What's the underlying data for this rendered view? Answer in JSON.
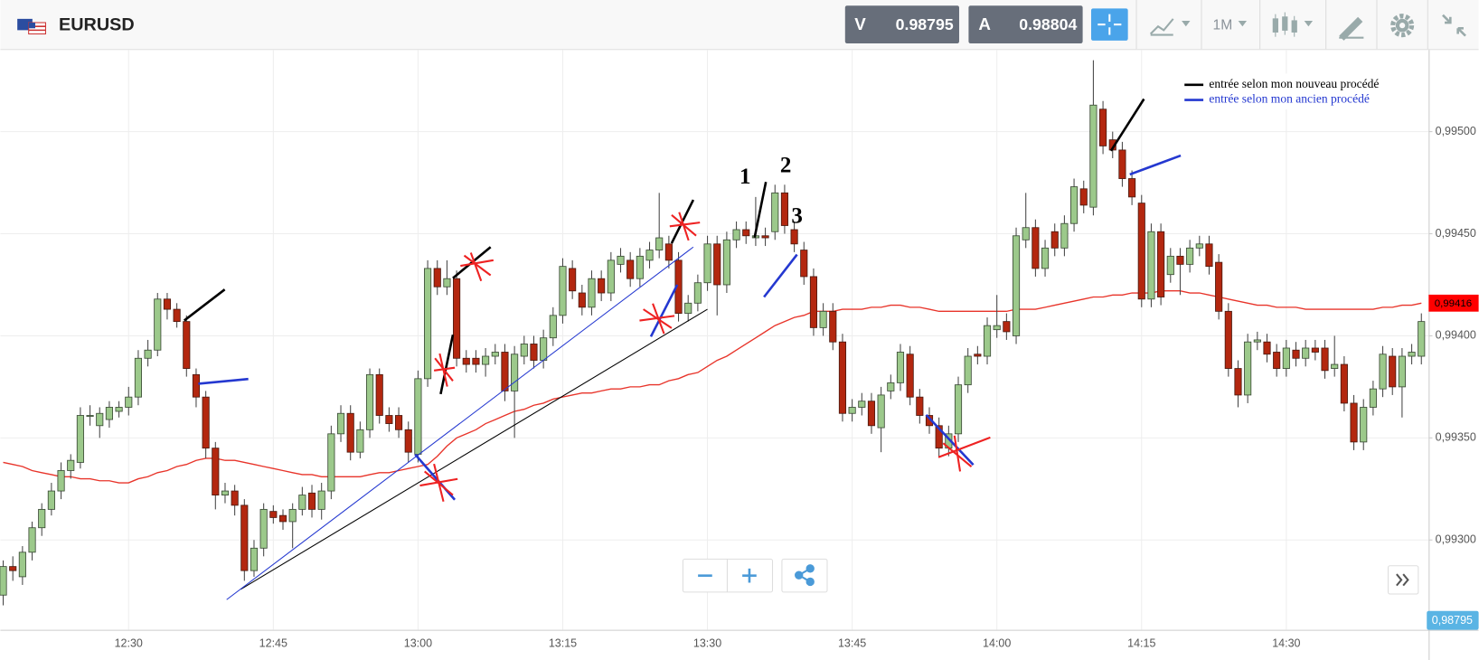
{
  "header": {
    "symbol": "EURUSD",
    "bid_letter": "V",
    "bid": "0.98795",
    "ask_letter": "A",
    "ask": "0.98804",
    "timeframe": "1M"
  },
  "chart_data": {
    "type": "candlestick",
    "categories": [
      null,
      null,
      null,
      null,
      null,
      null,
      null,
      null,
      null,
      null,
      null,
      null,
      null,
      "12:30",
      null,
      null,
      null,
      null,
      null,
      null,
      null,
      null,
      null,
      null,
      null,
      null,
      null,
      null,
      "12:45",
      null,
      null,
      null,
      null,
      null,
      null,
      null,
      null,
      null,
      null,
      null,
      null,
      null,
      null,
      "13:00",
      null,
      null,
      null,
      null,
      null,
      null,
      null,
      null,
      null,
      null,
      null,
      null,
      null,
      null,
      "13:15",
      null,
      null,
      null,
      null,
      null,
      null,
      null,
      null,
      null,
      null,
      null,
      null,
      null,
      null,
      "13:30",
      null,
      null,
      null,
      null,
      null,
      null,
      null,
      null,
      null,
      null,
      null,
      null,
      null,
      null,
      "13:45",
      null,
      null,
      null,
      null,
      null,
      null,
      null,
      null,
      null,
      null,
      null,
      null,
      null,
      null,
      "14:00",
      null,
      null,
      null,
      null,
      null,
      null,
      null,
      null,
      null,
      null,
      null,
      null,
      null,
      null,
      "14:15",
      null,
      null,
      null,
      null,
      null,
      null,
      null,
      null,
      null,
      null,
      null,
      null,
      null,
      null,
      "14:30",
      null,
      null,
      null,
      null,
      null,
      null,
      null,
      null,
      null,
      null,
      null,
      null,
      null,
      null
    ],
    "open": [
      0.99273,
      0.99287,
      0.99282,
      0.99294,
      0.99306,
      0.99315,
      0.99324,
      0.99334,
      0.99338,
      0.99361,
      0.99356,
      0.99359,
      0.99363,
      0.99365,
      0.9937,
      0.99389,
      0.99393,
      0.99418,
      0.99413,
      0.99407,
      0.99381,
      0.9937,
      0.99345,
      0.99322,
      0.99324,
      0.99317,
      0.99285,
      0.99296,
      0.99314,
      0.99312,
      0.99309,
      0.99315,
      0.99323,
      0.99315,
      0.99324,
      0.99352,
      0.99362,
      0.99343,
      0.99354,
      0.99381,
      0.99361,
      0.99361,
      0.99354,
      0.99342,
      0.99379,
      0.99433,
      0.99424,
      0.99428,
      0.99389,
      0.99389,
      0.99386,
      0.9939,
      0.99392,
      0.99373,
      0.9939,
      0.99396,
      0.99388,
      0.99399,
      0.9941,
      0.99433,
      0.99421,
      0.99414,
      0.99428,
      0.99421,
      0.99435,
      0.99437,
      0.99428,
      0.99437,
      0.99442,
      0.99445,
      0.99437,
      0.99411,
      0.99416,
      0.99426,
      0.99445,
      0.99425,
      0.99447,
      0.99452,
      0.99448,
      0.99449,
      0.99451,
      0.9947,
      0.99452,
      0.99442,
      0.99429,
      0.99404,
      0.99412,
      0.99397,
      0.99362,
      0.99365,
      0.99368,
      0.99355,
      0.99373,
      0.99377,
      0.99391,
      0.9937,
      0.99361,
      0.99356,
      0.99345,
      0.99352,
      0.99376,
      0.99391,
      0.9939,
      0.99403,
      0.99407,
      0.994,
      0.99447,
      0.99453,
      0.99433,
      0.99451,
      0.99443,
      0.99455,
      0.99472,
      0.99463,
      0.99511,
      0.99496,
      0.99491,
      0.99477,
      0.99465,
      0.99418,
      0.99451,
      0.9943,
      0.99439,
      0.99435,
      0.99443,
      0.99445,
      0.99436,
      0.99412,
      0.99384,
      0.99371,
      0.99397,
      0.99397,
      0.99392,
      0.99384,
      0.99393,
      0.99389,
      0.99394,
      0.99394,
      0.99384,
      0.99386,
      0.99367,
      0.99348,
      0.99365,
      0.99374,
      0.9939,
      0.99375,
      0.9939,
      0.9939
    ],
    "high": [
      0.9929,
      0.99292,
      0.99297,
      0.99309,
      0.99318,
      0.99328,
      0.99338,
      0.99342,
      0.99365,
      0.99366,
      0.99365,
      0.99368,
      0.99368,
      0.99375,
      0.99393,
      0.99398,
      0.99421,
      0.99421,
      0.99416,
      0.9941,
      0.99384,
      0.99373,
      0.99348,
      0.99328,
      0.99327,
      0.9932,
      0.993,
      0.99318,
      0.99317,
      0.99315,
      0.99318,
      0.99326,
      0.99327,
      0.99328,
      0.99356,
      0.99366,
      0.99366,
      0.99358,
      0.99384,
      0.99384,
      0.99365,
      0.99365,
      0.99358,
      0.99383,
      0.99437,
      0.99437,
      0.99437,
      0.99432,
      0.99393,
      0.99393,
      0.99394,
      0.99396,
      0.99396,
      0.99395,
      0.994,
      0.994,
      0.99403,
      0.99414,
      0.99438,
      0.99437,
      0.99425,
      0.99432,
      0.99432,
      0.99441,
      0.99443,
      0.99441,
      0.99443,
      0.99446,
      0.9947,
      0.99449,
      0.99441,
      0.9942,
      0.9943,
      0.99449,
      0.99449,
      0.99451,
      0.99456,
      0.99456,
      0.99468,
      0.99453,
      0.99474,
      0.99474,
      0.99456,
      0.99446,
      0.99433,
      0.99416,
      0.99416,
      0.99401,
      0.99369,
      0.99372,
      0.99372,
      0.99375,
      0.99381,
      0.99396,
      0.99395,
      0.99374,
      0.99365,
      0.9936,
      0.99356,
      0.9938,
      0.99394,
      0.99395,
      0.99409,
      0.9942,
      0.99411,
      0.99453,
      0.9947,
      0.99457,
      0.99447,
      0.99455,
      0.99459,
      0.99477,
      0.99476,
      0.99535,
      0.99515,
      0.995,
      0.99495,
      0.99481,
      0.99469,
      0.99455,
      0.99455,
      0.99443,
      0.99443,
      0.99447,
      0.99449,
      0.99449,
      0.9944,
      0.99416,
      0.99388,
      0.99401,
      0.99402,
      0.99401,
      0.99396,
      0.99398,
      0.99397,
      0.99398,
      0.99398,
      0.99398,
      0.994,
      0.9939,
      0.99371,
      0.99369,
      0.99378,
      0.99395,
      0.99394,
      0.99394,
      0.99396,
      0.99411
    ],
    "low": [
      0.99268,
      0.9928,
      0.99278,
      0.9929,
      0.99302,
      0.99312,
      0.9932,
      0.9933,
      0.99335,
      0.99356,
      0.9935,
      0.99355,
      0.9936,
      0.99361,
      0.99366,
      0.99385,
      0.9939,
      0.99408,
      0.99404,
      0.9938,
      0.99365,
      0.9934,
      0.99315,
      0.99318,
      0.99312,
      0.9928,
      0.99282,
      0.99292,
      0.99308,
      0.99305,
      0.99296,
      0.99312,
      0.99311,
      0.9931,
      0.9932,
      0.99348,
      0.99339,
      0.9934,
      0.9935,
      0.99357,
      0.99353,
      0.9935,
      0.99338,
      0.99338,
      0.99375,
      0.9942,
      0.9942,
      0.99385,
      0.99382,
      0.99382,
      0.9938,
      0.99386,
      0.99368,
      0.9935,
      0.99386,
      0.99384,
      0.99384,
      0.99395,
      0.99406,
      0.99418,
      0.9941,
      0.9941,
      0.99417,
      0.99417,
      0.99431,
      0.99424,
      0.99424,
      0.99433,
      0.99438,
      0.99433,
      0.99407,
      0.99407,
      0.99412,
      0.99422,
      0.9941,
      0.99421,
      0.99443,
      0.99445,
      0.99444,
      0.99444,
      0.99447,
      0.9945,
      0.99441,
      0.99425,
      0.994,
      0.994,
      0.99393,
      0.99358,
      0.99358,
      0.99361,
      0.99352,
      0.99343,
      0.99369,
      0.99373,
      0.99366,
      0.99357,
      0.99352,
      0.99341,
      0.99341,
      0.99348,
      0.99372,
      0.99386,
      0.99386,
      0.99399,
      0.99398,
      0.99396,
      0.99443,
      0.99429,
      0.99429,
      0.99439,
      0.99439,
      0.99451,
      0.9946,
      0.99459,
      0.99489,
      0.99487,
      0.99473,
      0.99464,
      0.99414,
      0.99414,
      0.99415,
      0.99426,
      0.9942,
      0.99431,
      0.99439,
      0.9943,
      0.99408,
      0.9938,
      0.99365,
      0.99367,
      0.99393,
      0.99387,
      0.9938,
      0.9938,
      0.99385,
      0.99385,
      0.99388,
      0.99379,
      0.9938,
      0.99363,
      0.99344,
      0.99344,
      0.99361,
      0.9937,
      0.99371,
      0.9936,
      0.99386,
      0.99386
    ],
    "close": [
      0.99287,
      0.99285,
      0.99294,
      0.99306,
      0.99315,
      0.99324,
      0.99334,
      0.99339,
      0.99361,
      0.99361,
      0.99362,
      0.99365,
      0.99365,
      0.9937,
      0.99389,
      0.99393,
      0.99418,
      0.99413,
      0.99407,
      0.99384,
      0.9937,
      0.99345,
      0.99322,
      0.99324,
      0.99317,
      0.99285,
      0.99296,
      0.99315,
      0.99311,
      0.99309,
      0.99315,
      0.99322,
      0.99315,
      0.99324,
      0.99352,
      0.99362,
      0.99343,
      0.99354,
      0.99381,
      0.99361,
      0.99357,
      0.99354,
      0.99343,
      0.99379,
      0.99433,
      0.99424,
      0.99428,
      0.99389,
      0.99386,
      0.99386,
      0.9939,
      0.99392,
      0.99373,
      0.99391,
      0.99396,
      0.99388,
      0.99399,
      0.9941,
      0.99434,
      0.99422,
      0.99414,
      0.99428,
      0.99421,
      0.99437,
      0.99439,
      0.99428,
      0.99439,
      0.99442,
      0.99448,
      0.99437,
      0.99411,
      0.99416,
      0.99426,
      0.99445,
      0.99425,
      0.99447,
      0.99452,
      0.99449,
      0.99449,
      0.99448,
      0.9947,
      0.99454,
      0.99445,
      0.99429,
      0.99404,
      0.99412,
      0.99397,
      0.99362,
      0.99365,
      0.99368,
      0.99356,
      0.99371,
      0.99377,
      0.99392,
      0.9937,
      0.99361,
      0.99356,
      0.99345,
      0.99352,
      0.99376,
      0.9939,
      0.9939,
      0.99405,
      0.99405,
      0.99402,
      0.99449,
      0.99453,
      0.99433,
      0.99443,
      0.99443,
      0.99455,
      0.99473,
      0.99464,
      0.99513,
      0.99493,
      0.99491,
      0.99477,
      0.99468,
      0.99418,
      0.99451,
      0.99419,
      0.99439,
      0.99435,
      0.99443,
      0.99445,
      0.99434,
      0.99412,
      0.99384,
      0.99371,
      0.99397,
      0.99398,
      0.99391,
      0.99384,
      0.99394,
      0.99389,
      0.99394,
      0.99392,
      0.99383,
      0.99386,
      0.99367,
      0.99348,
      0.99365,
      0.99374,
      0.99391,
      0.99375,
      0.9939,
      0.99392,
      0.99407
    ],
    "up_color": "#9cc98b",
    "down_color": "#b3270f",
    "moving_average": {
      "color": "#e8342a",
      "values": [
        0.99338,
        0.99337,
        0.99336,
        0.99334,
        0.99333,
        0.99332,
        0.99331,
        0.99331,
        0.9933,
        0.9933,
        0.99329,
        0.99329,
        0.99328,
        0.99328,
        0.9933,
        0.99331,
        0.99333,
        0.99334,
        0.99336,
        0.99337,
        0.99339,
        0.9934,
        0.9934,
        0.99339,
        0.99339,
        0.99338,
        0.99337,
        0.99336,
        0.99335,
        0.99334,
        0.99333,
        0.99332,
        0.99332,
        0.99331,
        0.99331,
        0.99331,
        0.99331,
        0.99331,
        0.99332,
        0.99333,
        0.99333,
        0.99334,
        0.99335,
        0.99336,
        0.99337,
        0.99341,
        0.99346,
        0.9935,
        0.99352,
        0.99354,
        0.99357,
        0.99359,
        0.99361,
        0.99363,
        0.99364,
        0.99366,
        0.99367,
        0.99369,
        0.9937,
        0.99371,
        0.99372,
        0.99372,
        0.99373,
        0.99374,
        0.99374,
        0.99375,
        0.99375,
        0.99376,
        0.99376,
        0.99378,
        0.99379,
        0.99381,
        0.99382,
        0.99385,
        0.99388,
        0.9939,
        0.99393,
        0.99396,
        0.99399,
        0.99402,
        0.99405,
        0.99407,
        0.99409,
        0.9941,
        0.99412,
        0.99412,
        0.99412,
        0.99413,
        0.99413,
        0.99413,
        0.99414,
        0.99414,
        0.99415,
        0.99415,
        0.99414,
        0.99414,
        0.99413,
        0.99412,
        0.99412,
        0.99412,
        0.99412,
        0.99412,
        0.99412,
        0.99412,
        0.99412,
        0.99413,
        0.99413,
        0.99413,
        0.99414,
        0.99415,
        0.99416,
        0.99417,
        0.99418,
        0.99419,
        0.99419,
        0.9942,
        0.9942,
        0.99421,
        0.99421,
        0.99421,
        0.99422,
        0.99422,
        0.99422,
        0.99421,
        0.99421,
        0.9942,
        0.99419,
        0.99418,
        0.99417,
        0.99416,
        0.99415,
        0.99415,
        0.99414,
        0.99414,
        0.99414,
        0.99413,
        0.99413,
        0.99413,
        0.99413,
        0.99413,
        0.99413,
        0.99413,
        0.99413,
        0.99414,
        0.99414,
        0.99415,
        0.99415,
        0.99416
      ]
    },
    "ylim": [
      0.99256,
      0.9954
    ],
    "yticks": [
      {
        "value": 0.993,
        "label": "0,99300"
      },
      {
        "value": 0.9935,
        "label": "0,99350"
      },
      {
        "value": 0.994,
        "label": "0,99400"
      },
      {
        "value": 0.9945,
        "label": "0,99450"
      },
      {
        "value": 0.995,
        "label": "0,99500"
      }
    ],
    "grid": true,
    "price_tag": {
      "value": 0.99416,
      "label": "0,99416",
      "color": "#ff0000"
    },
    "last_price_label": "0,98795",
    "annotations": [
      "1",
      "2",
      "3"
    ],
    "legend": [
      {
        "name": "entrée selon mon nouveau procédé",
        "color": "#000000"
      },
      {
        "name": "entrée selon mon ancien procédé",
        "color": "#2438d0"
      }
    ]
  }
}
